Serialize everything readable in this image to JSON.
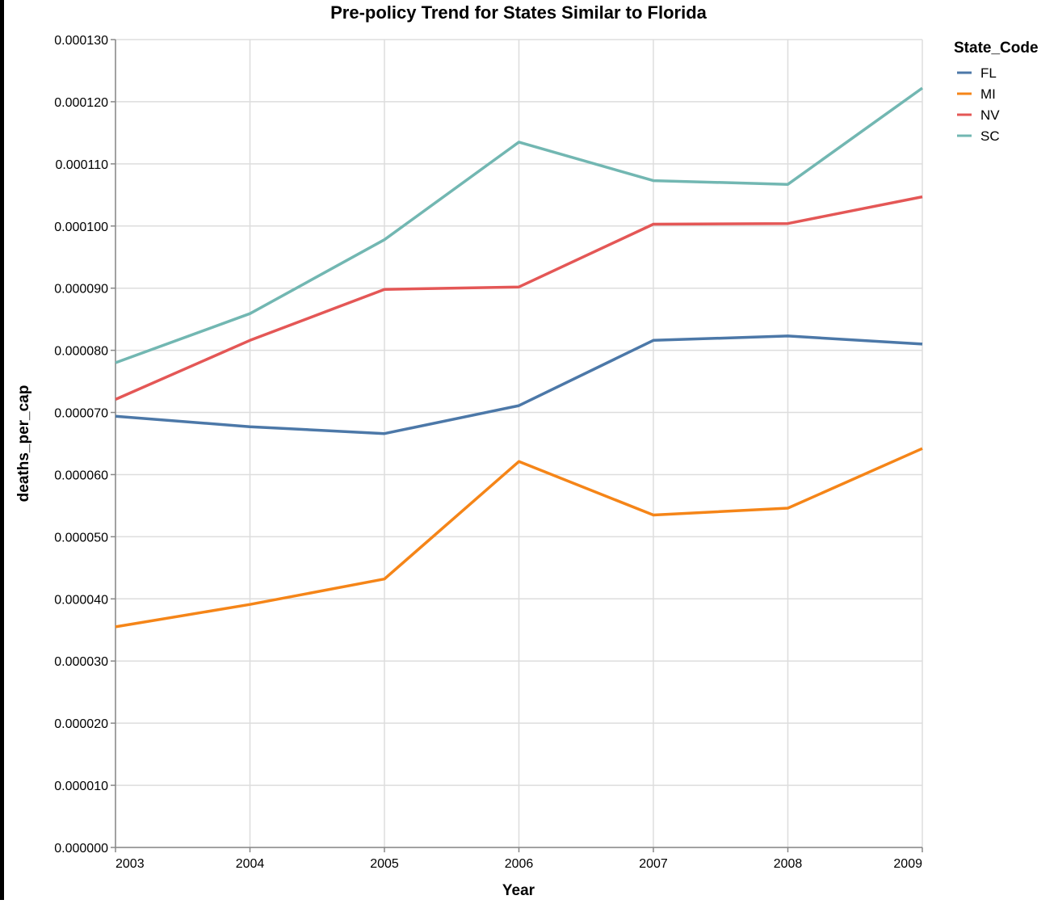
{
  "chart_data": {
    "type": "line",
    "title": "Pre-policy Trend for States Similar to Florida",
    "xlabel": "Year",
    "ylabel": "deaths_per_cap",
    "x": [
      2003,
      2004,
      2005,
      2006,
      2007,
      2008,
      2009
    ],
    "x_tick_labels": [
      "2003",
      "2004",
      "2005",
      "2006",
      "2007",
      "2008",
      "2009"
    ],
    "ylim": [
      0,
      0.00013
    ],
    "y_ticks": [
      0,
      1e-05,
      2e-05,
      3e-05,
      4e-05,
      5e-05,
      6e-05,
      7e-05,
      8e-05,
      9e-05,
      0.0001,
      0.00011,
      0.00012,
      0.00013
    ],
    "y_tick_labels": [
      "0.000000",
      "0.000010",
      "0.000020",
      "0.000030",
      "0.000040",
      "0.000050",
      "0.000060",
      "0.000070",
      "0.000080",
      "0.000090",
      "0.000100",
      "0.000110",
      "0.000120",
      "0.000130"
    ],
    "grid": true,
    "legend": {
      "title": "State_Code",
      "placement": "top-right"
    },
    "series": [
      {
        "name": "FL",
        "color": "#4c78a8",
        "values": [
          6.94e-05,
          6.77e-05,
          6.66e-05,
          7.11e-05,
          8.16e-05,
          8.23e-05,
          8.1e-05
        ]
      },
      {
        "name": "MI",
        "color": "#f58518",
        "values": [
          3.55e-05,
          3.91e-05,
          4.32e-05,
          6.21e-05,
          5.35e-05,
          5.46e-05,
          6.42e-05
        ]
      },
      {
        "name": "NV",
        "color": "#e45756",
        "values": [
          7.21e-05,
          8.16e-05,
          8.98e-05,
          9.02e-05,
          0.0001003,
          0.0001004,
          0.0001047
        ]
      },
      {
        "name": "SC",
        "color": "#72b7b2",
        "values": [
          7.8e-05,
          8.59e-05,
          9.78e-05,
          0.0001135,
          0.0001073,
          0.0001067,
          0.0001222
        ]
      }
    ]
  }
}
